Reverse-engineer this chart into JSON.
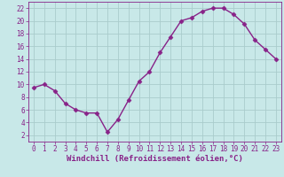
{
  "x": [
    0,
    1,
    2,
    3,
    4,
    5,
    6,
    7,
    8,
    9,
    10,
    11,
    12,
    13,
    14,
    15,
    16,
    17,
    18,
    19,
    20,
    21,
    22,
    23
  ],
  "y": [
    9.5,
    10.0,
    9.0,
    7.0,
    6.0,
    5.5,
    5.5,
    2.5,
    4.5,
    7.5,
    10.5,
    12.0,
    15.0,
    17.5,
    20.0,
    20.5,
    21.5,
    22.0,
    22.0,
    21.0,
    19.5,
    17.0,
    15.5,
    14.0
  ],
  "line_color": "#882288",
  "marker": "D",
  "markersize": 2.5,
  "linewidth": 1.0,
  "background_color": "#c8e8e8",
  "grid_color": "#aacccc",
  "xlabel": "Windchill (Refroidissement éolien,°C)",
  "ylim": [
    1,
    23
  ],
  "xlim": [
    -0.5,
    23.5
  ],
  "yticks": [
    2,
    4,
    6,
    8,
    10,
    12,
    14,
    16,
    18,
    20,
    22
  ],
  "xticks": [
    0,
    1,
    2,
    3,
    4,
    5,
    6,
    7,
    8,
    9,
    10,
    11,
    12,
    13,
    14,
    15,
    16,
    17,
    18,
    19,
    20,
    21,
    22,
    23
  ],
  "tick_color": "#882288",
  "label_color": "#882288",
  "label_fontsize": 6.5,
  "tick_fontsize": 5.5
}
